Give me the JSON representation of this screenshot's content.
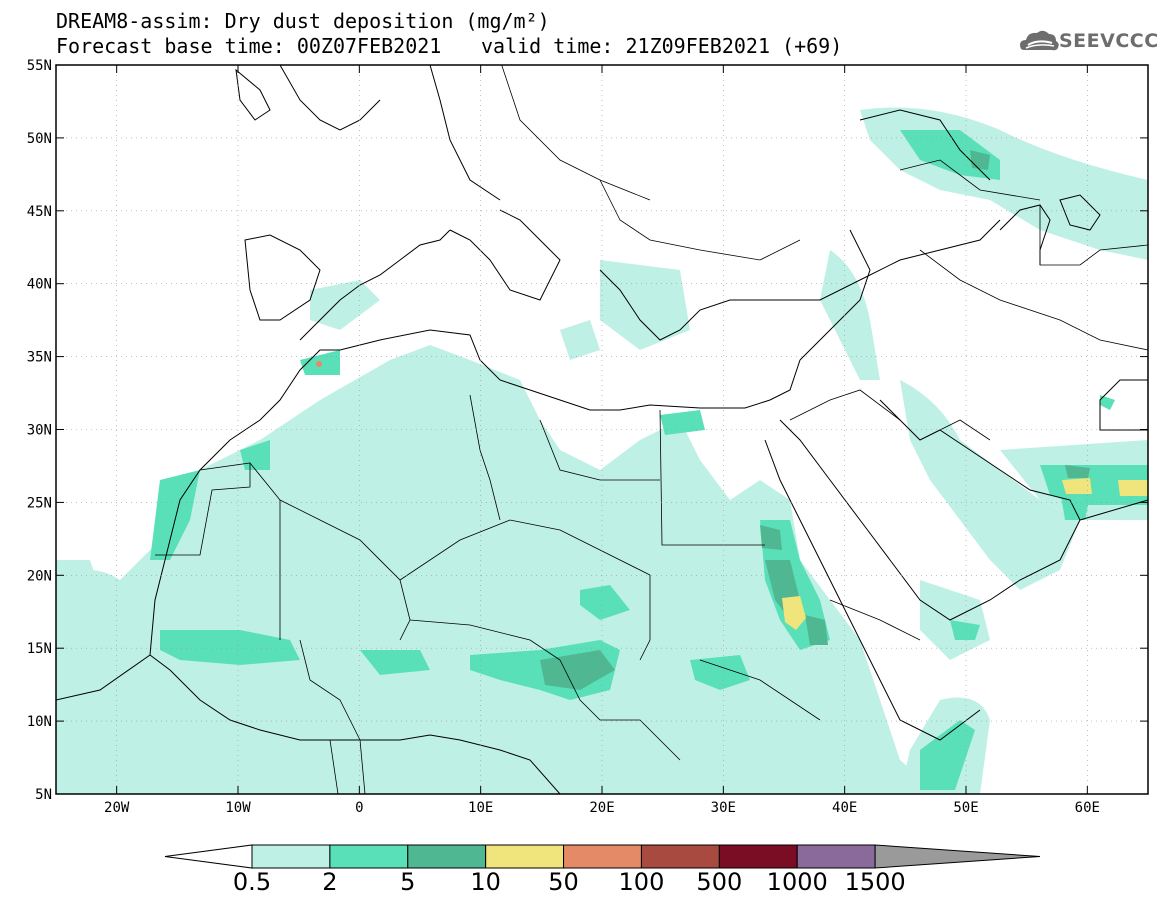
{
  "header": {
    "title_line1": "DREAM8-assim: Dry dust deposition (mg/m²)",
    "base_time": "Forecast base time: 00Z07FEB2021",
    "valid_time": "valid time: 21Z09FEB2021 (+69)",
    "logo_text": "SEEVCCC"
  },
  "map": {
    "lon_labels": [
      "20W",
      "10W",
      "0",
      "10E",
      "20E",
      "30E",
      "40E",
      "50E",
      "60E"
    ],
    "lat_labels": [
      "55N",
      "50N",
      "45N",
      "40N",
      "35N",
      "30N",
      "25N",
      "20N",
      "15N",
      "10N",
      "5N"
    ],
    "region": "North Africa, Europe, Middle East"
  },
  "colorbar": {
    "levels": [
      "0.5",
      "2",
      "5",
      "10",
      "50",
      "100",
      "500",
      "1000",
      "1500"
    ],
    "colors": [
      "#bff0e6",
      "#5ae0b8",
      "#4fb892",
      "#f0e47c",
      "#e58a66",
      "#a84a40",
      "#7a0c24",
      "#8a6a9a",
      "#9a9a9a"
    ],
    "under_color": "#ffffff"
  }
}
